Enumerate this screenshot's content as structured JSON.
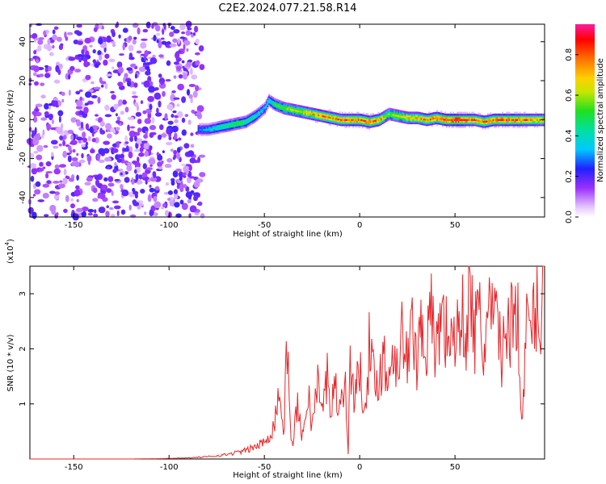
{
  "title": "C2E2.2024.077.21.58.R14",
  "colors": {
    "snr_line": "#e8262a",
    "frame": "#000000"
  },
  "chart_data": [
    {
      "type": "heatmap",
      "title": "C2E2.2024.077.21.58.R14",
      "xlabel": "Height of straight line (km)",
      "ylabel": "Frequency (Hz)",
      "xlim": [
        -173,
        97
      ],
      "ylim": [
        -50,
        49
      ],
      "xticks": [
        -150,
        -100,
        -50,
        0,
        50
      ],
      "yticks": [
        -40,
        -20,
        0,
        20,
        40
      ],
      "colorbar": {
        "label": "Normalized spectral amplitude",
        "range": [
          0,
          0.95
        ],
        "ticks": [
          0.0,
          0.2,
          0.4,
          0.6,
          0.8
        ]
      },
      "noise_region_x": [
        -173,
        -85
      ],
      "ridge": {
        "x": [
          -85,
          -80,
          -75,
          -70,
          -65,
          -60,
          -55,
          -50,
          -48,
          -45,
          -40,
          -35,
          -30,
          -25,
          -20,
          -15,
          -10,
          -5,
          0,
          5,
          10,
          15,
          20,
          25,
          30,
          35,
          40,
          45,
          50,
          55,
          60,
          65,
          70,
          75,
          80,
          85,
          90,
          95
        ],
        "freq": [
          -5,
          -5,
          -4,
          -3,
          -2,
          -1,
          2,
          6,
          10,
          8,
          6,
          5,
          4,
          3,
          2,
          1,
          0,
          0,
          0,
          -1,
          0,
          3,
          2,
          1,
          1,
          0,
          1,
          0,
          0,
          0,
          0,
          -1,
          0,
          0,
          0,
          0,
          0,
          0
        ],
        "amplitude": [
          0.3,
          0.35,
          0.45,
          0.5,
          0.55,
          0.5,
          0.45,
          0.35,
          0.4,
          0.5,
          0.6,
          0.65,
          0.7,
          0.75,
          0.8,
          0.8,
          0.8,
          0.85,
          0.85,
          0.85,
          0.8,
          0.6,
          0.65,
          0.7,
          0.75,
          0.8,
          0.85,
          0.85,
          0.95,
          0.9,
          0.8,
          0.8,
          0.85,
          0.85,
          0.85,
          0.85,
          0.8,
          0.75
        ]
      }
    },
    {
      "type": "line",
      "xlabel": "Height of straight line (km)",
      "ylabel": "SNR (10 * v/v)",
      "y_multiplier_label": "(x10",
      "y_multiplier_exp": "4",
      "y_multiplier_close": ")",
      "xlim": [
        -173,
        97
      ],
      "ylim": [
        0,
        3.5
      ],
      "xticks": [
        -150,
        -100,
        -50,
        0,
        50
      ],
      "yticks": [
        1,
        2,
        3
      ],
      "series": [
        {
          "x": [
            -173,
            -150,
            -120,
            -100,
            -90,
            -80,
            -70,
            -60,
            -55,
            -50,
            -45,
            -42,
            -40,
            -38,
            -36,
            -35,
            -33,
            -30,
            -27,
            -25,
            -22,
            -20,
            -17,
            -15,
            -12,
            -10,
            -8,
            -6,
            -5,
            -3,
            0,
            3,
            5,
            8,
            10,
            13,
            15,
            18,
            20,
            23,
            25,
            28,
            30,
            33,
            35,
            38,
            40,
            43,
            45,
            48,
            50,
            53,
            55,
            58,
            60,
            63,
            65,
            68,
            70,
            73,
            75,
            78,
            80,
            83,
            85,
            88,
            90,
            93,
            95,
            97
          ],
          "y": [
            0.0,
            0.0,
            0.0,
            0.01,
            0.02,
            0.04,
            0.08,
            0.15,
            0.22,
            0.3,
            0.6,
            1.3,
            0.4,
            2.0,
            0.5,
            0.2,
            1.0,
            0.4,
            1.2,
            0.6,
            1.4,
            0.8,
            1.5,
            1.0,
            1.3,
            0.9,
            1.6,
            0.1,
            1.8,
            1.2,
            1.5,
            1.1,
            2.0,
            1.3,
            1.6,
            1.8,
            1.4,
            2.2,
            1.7,
            2.4,
            1.6,
            2.5,
            1.8,
            2.7,
            2.0,
            2.6,
            1.9,
            2.8,
            2.2,
            2.5,
            1.8,
            2.9,
            2.1,
            3.15,
            2.2,
            2.6,
            1.9,
            2.8,
            2.3,
            2.5,
            1.8,
            2.7,
            2.4,
            2.9,
            0.55,
            2.6,
            2.2,
            3.0,
            2.5,
            3.5
          ]
        }
      ]
    }
  ]
}
